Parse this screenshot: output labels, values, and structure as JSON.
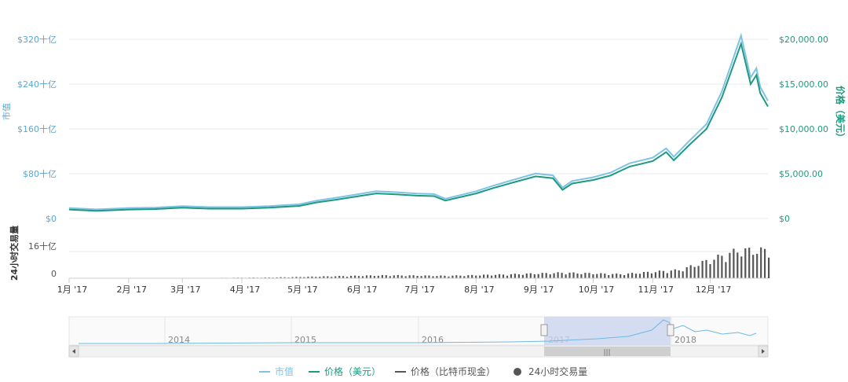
{
  "colors": {
    "market_cap": "#7ec3e6",
    "price_usd": "#1f9a7e",
    "price_btc": "#555555",
    "volume": "#555555",
    "grid": "#e8e8e8",
    "navigator_fill": "#c9d5ef",
    "axis_left": "#5aa6d6",
    "axis_right": "#1f9a7e"
  },
  "axes": {
    "left_title": "市值",
    "right_title": "价格（美元）",
    "volume_title": "24小时交易量",
    "left_ticks": [
      "$0",
      "$80十亿",
      "$160十亿",
      "$240十亿",
      "$320十亿"
    ],
    "right_ticks": [
      "$0",
      "$5,000.00",
      "$10,000.00",
      "$15,000.00",
      "$20,000.00"
    ],
    "volume_ticks": [
      "0",
      "16十亿"
    ],
    "x_ticks": [
      "1月 '17",
      "2月 '17",
      "3月 '17",
      "4月 '17",
      "5月 '17",
      "6月 '17",
      "7月 '17",
      "8月 '17",
      "9月 '17",
      "10月 '17",
      "11月 '17",
      "12月 '17"
    ]
  },
  "navigator": {
    "year_labels": [
      "2014",
      "2015",
      "2016",
      "2017",
      "2018"
    ],
    "scrollbar_grip": "|||"
  },
  "legend": [
    {
      "label": "市值",
      "kind": "line",
      "color_key": "market_cap"
    },
    {
      "label": "价格（美元）",
      "kind": "line",
      "color_key": "price_usd"
    },
    {
      "label": "价格（比特币现金）",
      "kind": "line",
      "color_key": "price_btc"
    },
    {
      "label": "24小时交易量",
      "kind": "dot",
      "color_key": "volume"
    }
  ],
  "chart_data": {
    "type": "line",
    "price_range_usd": [
      0,
      20000
    ],
    "market_cap_range_billion": [
      0,
      320
    ],
    "volume_range_billion": [
      0,
      32
    ],
    "series": [
      {
        "name": "价格（美元）",
        "x": [
          "2017-01-01",
          "2017-01-15",
          "2017-02-01",
          "2017-02-15",
          "2017-03-01",
          "2017-03-15",
          "2017-04-01",
          "2017-04-15",
          "2017-05-01",
          "2017-05-10",
          "2017-05-20",
          "2017-06-01",
          "2017-06-10",
          "2017-06-20",
          "2017-07-01",
          "2017-07-10",
          "2017-07-16",
          "2017-08-01",
          "2017-08-10",
          "2017-08-20",
          "2017-09-01",
          "2017-09-10",
          "2017-09-15",
          "2017-09-20",
          "2017-10-01",
          "2017-10-10",
          "2017-10-20",
          "2017-11-01",
          "2017-11-08",
          "2017-11-12",
          "2017-11-20",
          "2017-11-29",
          "2017-12-07",
          "2017-12-17",
          "2017-12-22",
          "2017-12-25",
          "2017-12-27",
          "2017-12-31"
        ],
        "values": [
          1000,
          850,
          1000,
          1050,
          1200,
          1100,
          1100,
          1200,
          1400,
          1800,
          2100,
          2500,
          2800,
          2700,
          2550,
          2500,
          2000,
          2800,
          3400,
          4000,
          4700,
          4500,
          3200,
          3900,
          4300,
          4800,
          5800,
          6400,
          7400,
          6500,
          8200,
          10000,
          13500,
          19500,
          15000,
          16000,
          14000,
          12500
        ]
      },
      {
        "name": "市值",
        "x": [
          "2017-01-01",
          "2017-02-01",
          "2017-03-01",
          "2017-04-01",
          "2017-05-01",
          "2017-06-01",
          "2017-07-01",
          "2017-08-01",
          "2017-09-01",
          "2017-10-01",
          "2017-11-01",
          "2017-12-01",
          "2017-12-17",
          "2017-12-31"
        ],
        "values": [
          16,
          17,
          20,
          18,
          23,
          42,
          42,
          47,
          78,
          72,
          107,
          170,
          330,
          210
        ]
      },
      {
        "name": "24小时交易量",
        "x": [
          "2017-01",
          "2017-02",
          "2017-03",
          "2017-04",
          "2017-05",
          "2017-06",
          "2017-07",
          "2017-08",
          "2017-09",
          "2017-10",
          "2017-11",
          "2017-12"
        ],
        "values": [
          0.2,
          0.15,
          0.2,
          0.4,
          1.0,
          1.6,
          1.3,
          2.0,
          3.0,
          2.2,
          4.5,
          15.0
        ]
      }
    ]
  }
}
